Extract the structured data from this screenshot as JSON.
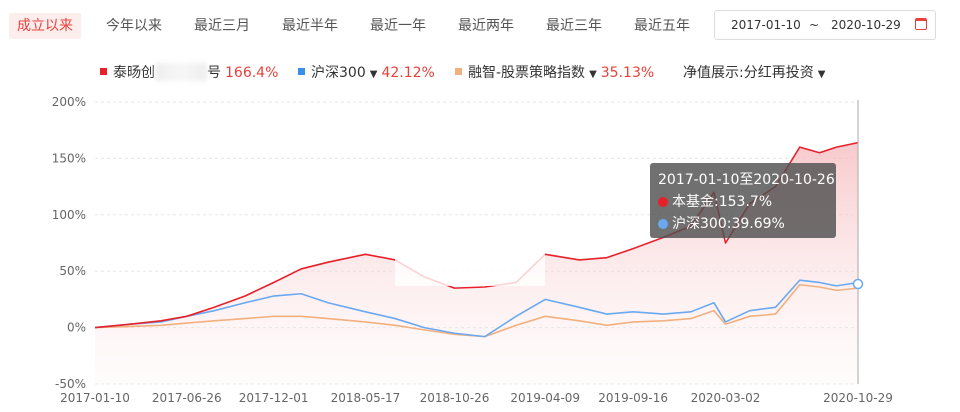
{
  "tabs": [
    {
      "label": "成立以来",
      "active": true
    },
    {
      "label": "今年以来"
    },
    {
      "label": "最近三月"
    },
    {
      "label": "最近半年"
    },
    {
      "label": "最近一年"
    },
    {
      "label": "最近两年"
    },
    {
      "label": "最近三年"
    },
    {
      "label": "最近五年"
    }
  ],
  "date_range": {
    "start": "2017-01-10",
    "separator": "~",
    "end": "2020-10-29",
    "icon": "calendar-icon"
  },
  "legend": {
    "fund": {
      "name_start": "泰旸创",
      "name_end": "号",
      "value": "166.4%",
      "color": "#e8202a"
    },
    "hs300": {
      "name": "沪深300",
      "value": "42.12%",
      "color": "#3b8fe6"
    },
    "index": {
      "name": "融智-股票策略指数",
      "value": "35.13%",
      "color": "#f2b07e"
    },
    "display": {
      "label": "净值展示:",
      "value": "分红再投资"
    }
  },
  "tooltip": {
    "title": "2017-01-10至2020-10-26",
    "fund_label": "本基金:",
    "fund_value": "153.7%",
    "hs300_label": "沪深300:",
    "hs300_value": "39.69%"
  },
  "chart_data": {
    "type": "line",
    "y_ticks": [
      "200%",
      "150%",
      "100%",
      "50%",
      "0%",
      "-50%"
    ],
    "ylim": [
      -50,
      200
    ],
    "x_ticks": [
      "2017-01-10",
      "2017-06-26",
      "2017-12-01",
      "2018-05-17",
      "2018-10-26",
      "2019-04-09",
      "2019-09-16",
      "2020-03-02",
      "2020-10-29"
    ],
    "grid": true,
    "legend_position": "top",
    "series": [
      {
        "name": "泰旸创 号",
        "color": "#e8202a",
        "x": [
          "2017-01-10",
          "2017-03-15",
          "2017-05-10",
          "2017-06-26",
          "2017-08-15",
          "2017-10-10",
          "2017-12-01",
          "2018-01-20",
          "2018-03-10",
          "2018-05-17",
          "2018-07-10",
          "2018-09-01",
          "2018-10-26",
          "2018-12-20",
          "2019-02-15",
          "2019-04-09",
          "2019-06-10",
          "2019-07-30",
          "2019-09-16",
          "2019-11-10",
          "2019-12-30",
          "2020-02-10",
          "2020-03-02",
          "2020-04-15",
          "2020-06-01",
          "2020-07-15",
          "2020-08-20",
          "2020-09-20",
          "2020-10-29"
        ],
        "y": [
          0,
          3,
          6,
          10,
          18,
          28,
          40,
          52,
          58,
          65,
          60,
          45,
          35,
          36,
          40,
          65,
          60,
          62,
          70,
          80,
          90,
          120,
          75,
          110,
          125,
          160,
          155,
          160,
          164
        ]
      },
      {
        "name": "沪深300",
        "color": "#6aa9f0",
        "x": [
          "2017-01-10",
          "2017-03-15",
          "2017-05-10",
          "2017-06-26",
          "2017-08-15",
          "2017-10-10",
          "2017-12-01",
          "2018-01-20",
          "2018-03-10",
          "2018-05-17",
          "2018-07-10",
          "2018-09-01",
          "2018-10-26",
          "2018-12-20",
          "2019-02-15",
          "2019-04-09",
          "2019-06-10",
          "2019-07-30",
          "2019-09-16",
          "2019-11-10",
          "2019-12-30",
          "2020-02-10",
          "2020-03-02",
          "2020-04-15",
          "2020-06-01",
          "2020-07-15",
          "2020-08-20",
          "2020-09-20",
          "2020-10-29"
        ],
        "y": [
          0,
          3,
          5,
          10,
          15,
          22,
          28,
          30,
          22,
          14,
          8,
          0,
          -5,
          -8,
          10,
          25,
          18,
          12,
          14,
          12,
          14,
          22,
          5,
          15,
          18,
          42,
          40,
          37,
          40
        ]
      },
      {
        "name": "融智-股票策略指数",
        "color": "#f2b07e",
        "x": [
          "2017-01-10",
          "2017-03-15",
          "2017-05-10",
          "2017-06-26",
          "2017-08-15",
          "2017-10-10",
          "2017-12-01",
          "2018-01-20",
          "2018-03-10",
          "2018-05-17",
          "2018-07-10",
          "2018-09-01",
          "2018-10-26",
          "2018-12-20",
          "2019-02-15",
          "2019-04-09",
          "2019-06-10",
          "2019-07-30",
          "2019-09-16",
          "2019-11-10",
          "2019-12-30",
          "2020-02-10",
          "2020-03-02",
          "2020-04-15",
          "2020-06-01",
          "2020-07-15",
          "2020-08-20",
          "2020-09-20",
          "2020-10-29"
        ],
        "y": [
          0,
          1,
          2,
          4,
          6,
          8,
          10,
          10,
          8,
          5,
          2,
          -2,
          -6,
          -8,
          2,
          10,
          6,
          2,
          5,
          6,
          8,
          15,
          3,
          10,
          12,
          38,
          36,
          33,
          35
        ]
      }
    ]
  }
}
